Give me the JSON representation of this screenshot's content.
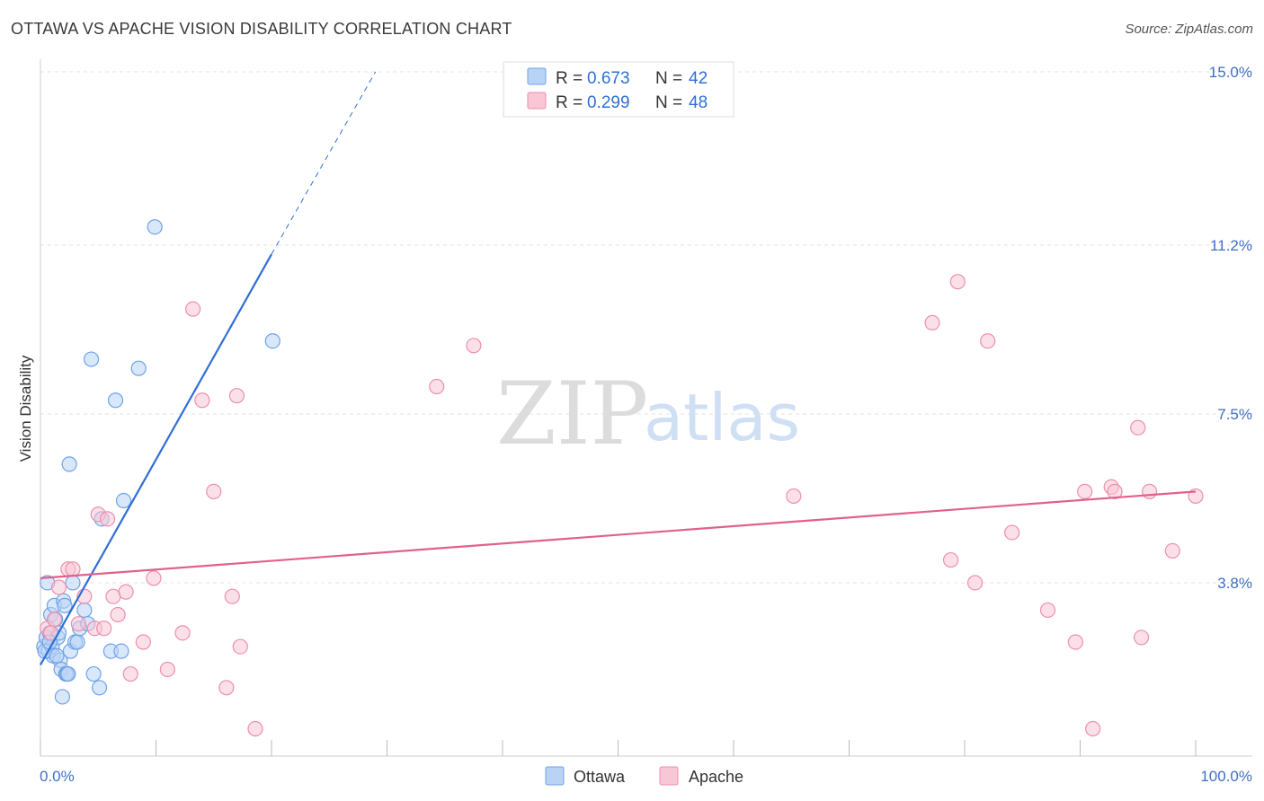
{
  "title": "OTTAWA VS APACHE VISION DISABILITY CORRELATION CHART",
  "source": "Source: ZipAtlas.com",
  "watermark": {
    "zip": "ZIP",
    "atlas": "atlas"
  },
  "chart_data": {
    "type": "scatter",
    "xlabel": "",
    "ylabel": "Vision Disability",
    "xlim": [
      0,
      100
    ],
    "ylim": [
      0,
      15.0
    ],
    "x_tick_labels": [
      "0.0%",
      "100.0%"
    ],
    "y_ticks": [
      {
        "value": 3.8,
        "label": "3.8%"
      },
      {
        "value": 7.5,
        "label": "7.5%"
      },
      {
        "value": 11.2,
        "label": "11.2%"
      },
      {
        "value": 15.0,
        "label": "15.0%"
      }
    ],
    "legend": [
      {
        "name": "Ottawa",
        "r_label": "R = ",
        "r": "0.673",
        "n_label": "N = ",
        "n": "42",
        "color": "#6fa3e8",
        "fill": "#b9d3f5"
      },
      {
        "name": "Apache",
        "r_label": "R = ",
        "r": "0.299",
        "n_label": "N = ",
        "n": "48",
        "color": "#ee8fae",
        "fill": "#f8c6d5"
      }
    ],
    "series": [
      {
        "name": "Ottawa",
        "color": "#6fa3e8",
        "trend": {
          "x0": 0.0,
          "y0": 2.0,
          "x1": 20.0,
          "y1": 11.0,
          "dash_x1": 29.0,
          "dash_y1": 15.0,
          "color": "#2f6fd6"
        },
        "points": [
          [
            0.3,
            2.4
          ],
          [
            0.5,
            2.6
          ],
          [
            0.6,
            3.8
          ],
          [
            0.7,
            2.3
          ],
          [
            0.8,
            2.7
          ],
          [
            0.9,
            3.1
          ],
          [
            1.0,
            2.4
          ],
          [
            1.1,
            2.2
          ],
          [
            1.2,
            3.3
          ],
          [
            1.3,
            3.0
          ],
          [
            1.5,
            2.6
          ],
          [
            1.6,
            2.7
          ],
          [
            1.7,
            2.1
          ],
          [
            1.8,
            1.9
          ],
          [
            2.0,
            3.4
          ],
          [
            2.1,
            3.3
          ],
          [
            2.2,
            1.8
          ],
          [
            2.3,
            1.8
          ],
          [
            2.5,
            6.4
          ],
          [
            2.6,
            2.3
          ],
          [
            2.8,
            3.8
          ],
          [
            3.0,
            2.5
          ],
          [
            3.2,
            2.5
          ],
          [
            3.4,
            2.8
          ],
          [
            3.8,
            3.2
          ],
          [
            4.1,
            2.9
          ],
          [
            4.4,
            8.7
          ],
          [
            4.6,
            1.8
          ],
          [
            5.1,
            1.5
          ],
          [
            5.3,
            5.2
          ],
          [
            6.1,
            2.3
          ],
          [
            6.5,
            7.8
          ],
          [
            7.0,
            2.3
          ],
          [
            7.2,
            5.6
          ],
          [
            8.5,
            8.5
          ],
          [
            9.9,
            11.6
          ],
          [
            20.1,
            9.1
          ],
          [
            0.4,
            2.3
          ],
          [
            1.4,
            2.2
          ],
          [
            2.4,
            1.8
          ],
          [
            1.9,
            1.3
          ],
          [
            0.8,
            2.5
          ]
        ]
      },
      {
        "name": "Apache",
        "color": "#ee8fae",
        "trend": {
          "x0": 0.0,
          "y0": 3.9,
          "x1": 100.0,
          "y1": 5.8,
          "color": "#e0618b"
        },
        "points": [
          [
            0.6,
            2.8
          ],
          [
            0.9,
            2.7
          ],
          [
            1.2,
            3.0
          ],
          [
            1.6,
            3.7
          ],
          [
            2.4,
            4.1
          ],
          [
            2.8,
            4.1
          ],
          [
            3.3,
            2.9
          ],
          [
            3.8,
            3.5
          ],
          [
            4.7,
            2.8
          ],
          [
            5.0,
            5.3
          ],
          [
            5.5,
            2.8
          ],
          [
            5.8,
            5.2
          ],
          [
            6.3,
            3.5
          ],
          [
            6.7,
            3.1
          ],
          [
            7.4,
            3.6
          ],
          [
            7.8,
            1.8
          ],
          [
            8.9,
            2.5
          ],
          [
            9.8,
            3.9
          ],
          [
            11.0,
            1.9
          ],
          [
            12.3,
            2.7
          ],
          [
            13.2,
            9.8
          ],
          [
            14.0,
            7.8
          ],
          [
            15.0,
            5.8
          ],
          [
            16.1,
            1.5
          ],
          [
            16.6,
            3.5
          ],
          [
            17.0,
            7.9
          ],
          [
            17.3,
            2.4
          ],
          [
            18.6,
            0.6
          ],
          [
            34.3,
            8.1
          ],
          [
            37.5,
            9.0
          ],
          [
            65.2,
            5.7
          ],
          [
            77.2,
            9.5
          ],
          [
            78.8,
            4.3
          ],
          [
            79.4,
            10.4
          ],
          [
            80.9,
            3.8
          ],
          [
            82.0,
            9.1
          ],
          [
            84.1,
            4.9
          ],
          [
            87.2,
            3.2
          ],
          [
            90.4,
            5.8
          ],
          [
            91.1,
            0.6
          ],
          [
            89.6,
            2.5
          ],
          [
            92.7,
            5.9
          ],
          [
            93.0,
            5.8
          ],
          [
            95.0,
            7.2
          ],
          [
            95.3,
            2.6
          ],
          [
            96.0,
            5.8
          ],
          [
            98.0,
            4.5
          ],
          [
            100.0,
            5.7
          ]
        ]
      }
    ]
  }
}
